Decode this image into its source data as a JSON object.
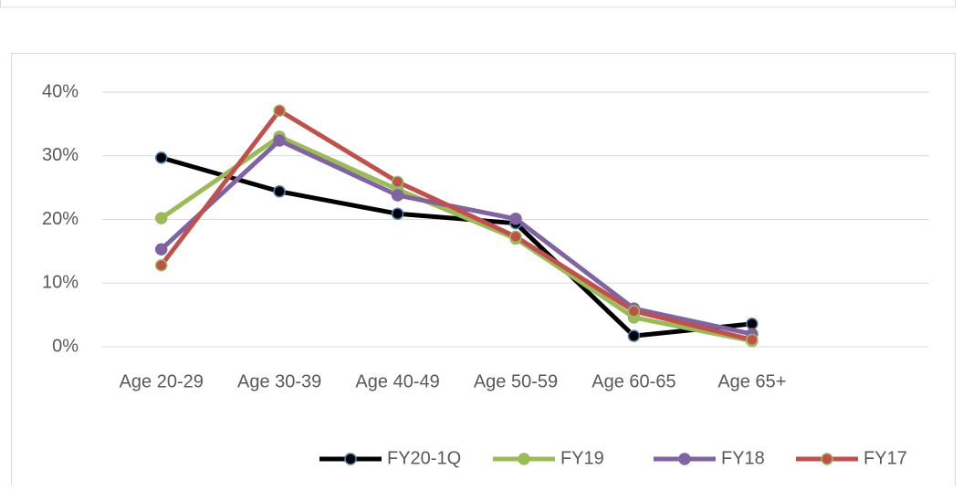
{
  "chart_data": {
    "type": "line",
    "categories": [
      "Age 20-29",
      "Age 30-39",
      "Age 40-49",
      "Age 50-59",
      "Age 60-65",
      "Age 65+",
      null
    ],
    "series": [
      {
        "name": "FY20-1Q",
        "color": "#000000",
        "marker_edge_color": "#4f81bd",
        "values": [
          29.7,
          24.4,
          20.9,
          19.4,
          1.7,
          3.6,
          null
        ]
      },
      {
        "name": "FY19",
        "color": "#9bbb59",
        "marker_edge_color": "#9bbb59",
        "values": [
          20.2,
          33.0,
          24.7,
          17.0,
          4.6,
          0.9,
          null
        ]
      },
      {
        "name": "FY18",
        "color": "#8064a2",
        "marker_edge_color": "#8064a2",
        "values": [
          15.3,
          32.4,
          23.8,
          20.1,
          6.0,
          2.0,
          null
        ]
      },
      {
        "name": "FY17",
        "color": "#c0504d",
        "marker_edge_color": "#9bbb59",
        "values": [
          12.8,
          37.1,
          25.9,
          17.3,
          5.6,
          1.1,
          null
        ]
      }
    ],
    "ylim": [
      0,
      40
    ],
    "yticks": [
      {
        "value": 0,
        "label": "0%"
      },
      {
        "value": 10,
        "label": "10%"
      },
      {
        "value": 20,
        "label": "20%"
      },
      {
        "value": 30,
        "label": "30%"
      },
      {
        "value": 40,
        "label": "40%"
      }
    ],
    "grid": true,
    "legend": "bottom"
  }
}
